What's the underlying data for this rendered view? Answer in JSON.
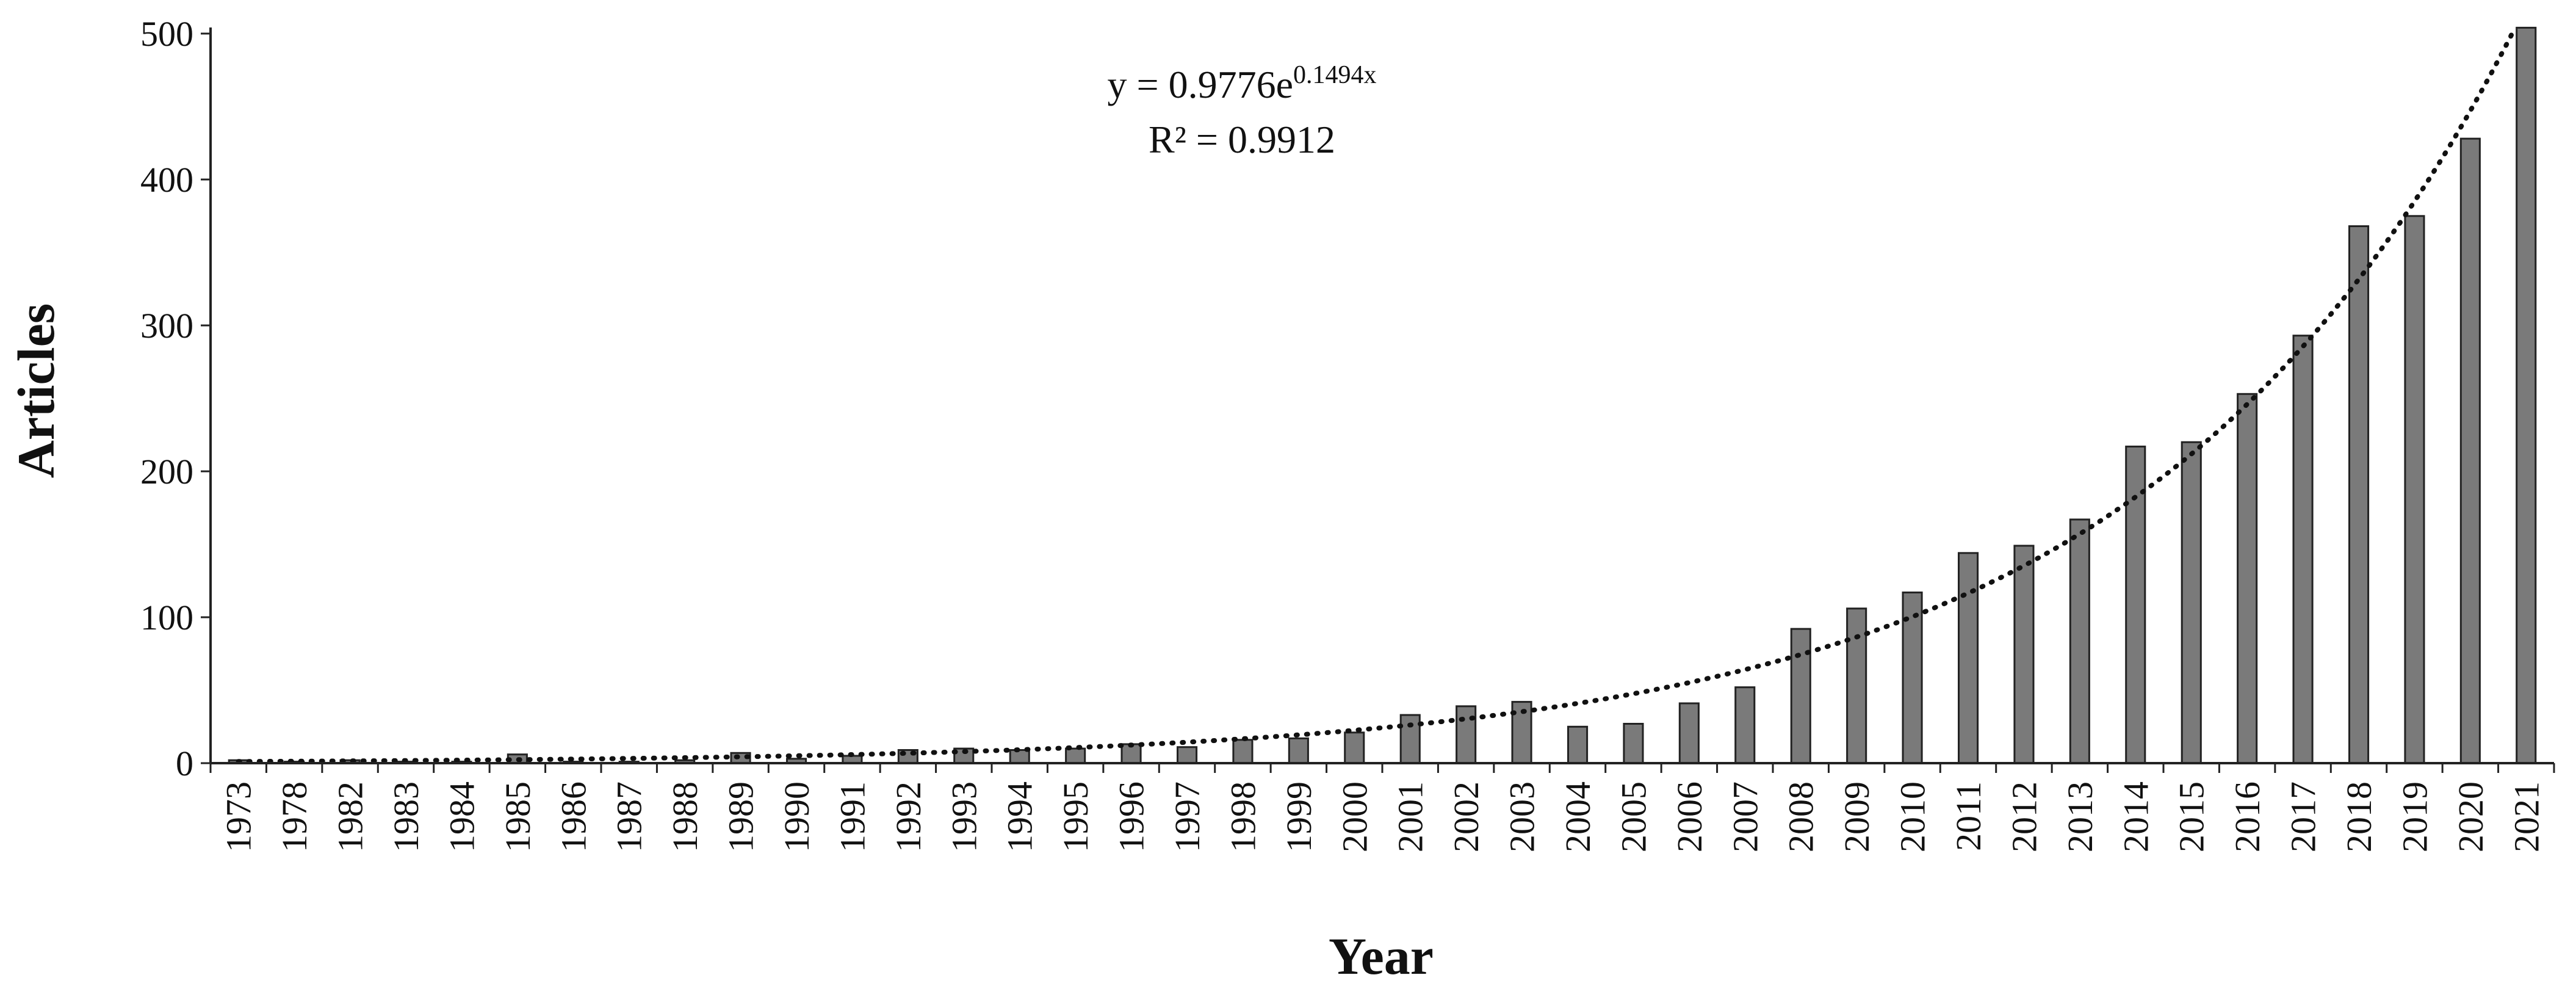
{
  "chart_data": {
    "type": "bar",
    "title": "",
    "xlabel": "Year",
    "ylabel": "Articles",
    "ylim": [
      0,
      500
    ],
    "yticks": [
      0,
      100,
      200,
      300,
      400,
      500
    ],
    "categories": [
      "1973",
      "1978",
      "1982",
      "1983",
      "1984",
      "1985",
      "1986",
      "1987",
      "1988",
      "1989",
      "1990",
      "1991",
      "1992",
      "1993",
      "1994",
      "1995",
      "1996",
      "1997",
      "1998",
      "1999",
      "2000",
      "2001",
      "2002",
      "2003",
      "2004",
      "2005",
      "2006",
      "2007",
      "2008",
      "2009",
      "2010",
      "2011",
      "2012",
      "2013",
      "2014",
      "2015",
      "2016",
      "2017",
      "2018",
      "2019",
      "2020",
      "2021"
    ],
    "values": [
      2,
      1,
      2,
      1,
      1,
      6,
      1,
      1,
      2,
      7,
      3,
      5,
      9,
      10,
      9,
      10,
      13,
      11,
      16,
      17,
      21,
      33,
      39,
      42,
      25,
      27,
      41,
      52,
      92,
      106,
      117,
      144,
      149,
      167,
      217,
      220,
      253,
      293,
      368,
      375,
      428,
      504
    ],
    "trendline": {
      "type": "exponential",
      "a": 0.9776,
      "b": 0.1494,
      "equation_main": "y = 0.9776e",
      "equation_exp": "0.1494x",
      "r_squared_label": "R² = 0.9912"
    },
    "grid": false,
    "legend": "none"
  }
}
